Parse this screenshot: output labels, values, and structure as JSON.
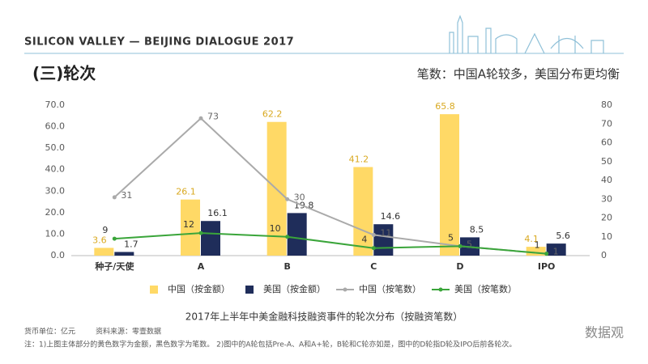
{
  "header": {
    "banner": "SILICON VALLEY — BEIJING DIALOGUE 2017",
    "section": "(三)轮次",
    "headline": "笔数：中国A轮较多，美国分布更均衡"
  },
  "chart_data": {
    "type": "bar",
    "categories": [
      "种子/天使",
      "A",
      "B",
      "C",
      "D",
      "IPO"
    ],
    "series": [
      {
        "name": "中国（按金额）",
        "type": "bar",
        "color": "#ffd966",
        "values": [
          3.6,
          26.1,
          62.2,
          41.2,
          65.8,
          4.1
        ]
      },
      {
        "name": "美国（按金额）",
        "type": "bar",
        "color": "#1f2d5a",
        "values": [
          1.7,
          16.1,
          19.8,
          14.6,
          8.5,
          5.6
        ]
      },
      {
        "name": "中国（按笔数）",
        "type": "line",
        "axis": "y2",
        "color": "#aaaaaa",
        "values": [
          31,
          73,
          30,
          11,
          5,
          1
        ]
      },
      {
        "name": "美国（按笔数）",
        "type": "line",
        "axis": "y2",
        "color": "#3aa53a",
        "values": [
          9,
          12,
          10,
          4,
          5,
          1
        ]
      }
    ],
    "ylim": [
      0,
      70
    ],
    "yticks": [
      {
        "value": 0,
        "label": "0.0"
      },
      {
        "value": 10,
        "label": "10.0"
      },
      {
        "value": 20,
        "label": "20.0"
      },
      {
        "value": 30,
        "label": "30.0"
      },
      {
        "value": 40,
        "label": "40.0"
      },
      {
        "value": 50,
        "label": "50.0"
      },
      {
        "value": 60,
        "label": "60.0"
      },
      {
        "value": 70,
        "label": "70.0"
      }
    ],
    "y2lim": [
      0,
      80
    ],
    "y2ticks": [
      0,
      10,
      20,
      30,
      40,
      50,
      60,
      70,
      80
    ],
    "grid": false,
    "legend": "bottom",
    "caption": "2017年上半年中美金融科技融资事件的轮次分布（按融资笔数）"
  },
  "footer": {
    "unit": "货币单位：亿元",
    "source": "资料来源：零壹数据",
    "note": "注：1)上图主体部分的黄色数字为金额，黑色数字为笔数。  2)图中的A轮包括Pre-A、A和A+轮，B轮和C轮亦如是，图中的D轮指D轮及IPO后前各轮次。",
    "watermark": "数据观"
  }
}
